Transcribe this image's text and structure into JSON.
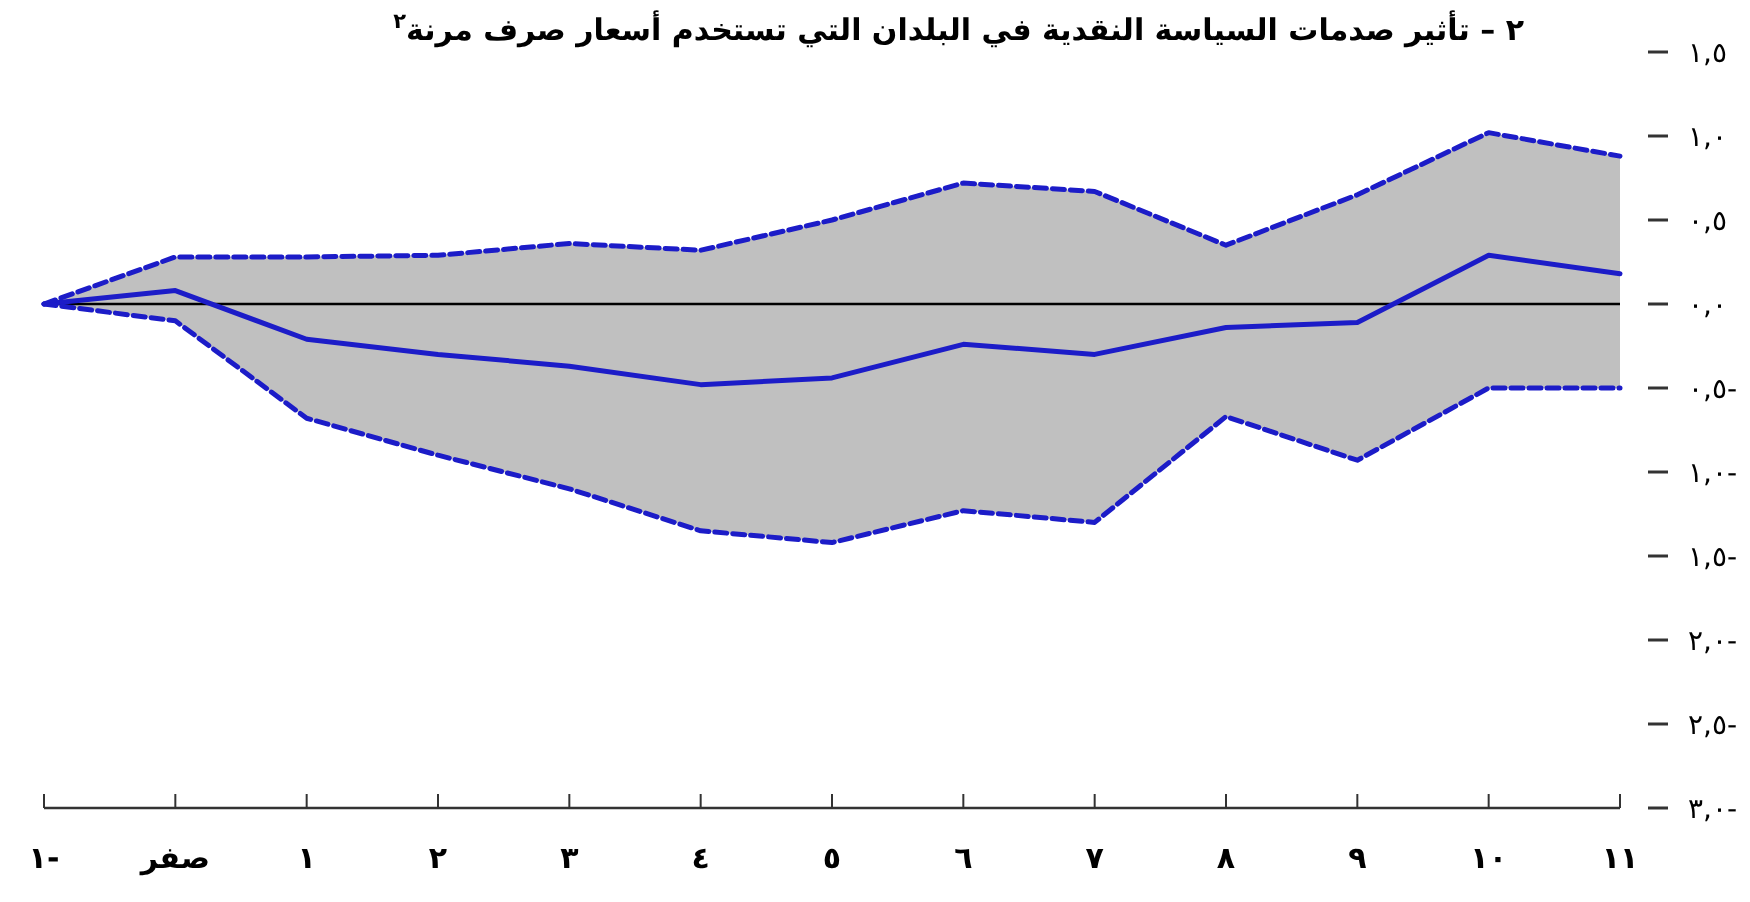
{
  "chart_data": {
    "type": "line",
    "title": "٢ – تأثير صدمات السياسة النقدية في البلدان التي تستخدم أسعار صرف مرنة$^{٢}$",
    "categories": [
      "١-",
      "صفر",
      "١",
      "٢",
      "٣",
      "٤",
      "٥",
      "٦",
      "٧",
      "٨",
      "٩",
      "١٠",
      "١١"
    ],
    "series": [
      {
        "color": "#1c1cc8",
        "values": [
          0,
          0.08,
          -0.21,
          -0.3,
          -0.37,
          -0.48,
          -0.44,
          -0.24,
          -0.3,
          -0.14,
          -0.11,
          0.29,
          0.18
        ],
        "lower": [
          0,
          -0.1,
          -0.68,
          -0.9,
          -1.1,
          -1.35,
          -1.42,
          -1.23,
          -1.3,
          -0.67,
          -0.93,
          -0.5,
          -0.5
        ],
        "upper": [
          0,
          0.28,
          0.28,
          0.29,
          0.36,
          0.32,
          0.5,
          0.72,
          0.67,
          0.35,
          0.65,
          1.02,
          0.88
        ]
      },
      {
        "color": "#1c1cc8",
        "line_style": "dashed",
        "values": [
          0,
          0.28,
          0.28,
          0.29,
          0.36,
          0.32,
          0.5,
          0.72,
          0.67,
          0.35,
          0.65,
          1.02,
          0.88
        ]
      },
      {
        "color": "#1c1cc8",
        "line_style": "dashed",
        "values": [
          0,
          -0.1,
          -0.68,
          -0.9,
          -1.1,
          -1.35,
          -1.42,
          -1.23,
          -1.3,
          -0.67,
          -0.93,
          -0.5,
          -0.5
        ]
      }
    ],
    "ylim": [
      -3,
      1.5
    ],
    "yticks": [
      {
        "value": 1.5,
        "label": "١,٥"
      },
      {
        "value": 1,
        "label": "١,٠"
      },
      {
        "value": 0.5,
        "label": "٠,٥"
      },
      {
        "value": 0,
        "label": "٠,٠"
      },
      {
        "value": -0.5,
        "label": "٠,٥-"
      },
      {
        "value": -1,
        "label": "١,٠-"
      },
      {
        "value": -1.5,
        "label": "١,٥-"
      },
      {
        "value": -2,
        "label": "٢,٠-"
      },
      {
        "value": -2.5,
        "label": "٢,٥-"
      },
      {
        "value": -3,
        "label": "٣,٠-"
      }
    ],
    "ref_lines": [
      {
        "axis": "y",
        "value": 0,
        "color": "#000000"
      }
    ],
    "grid": false,
    "marker": "none",
    "line_style": "solid"
  }
}
